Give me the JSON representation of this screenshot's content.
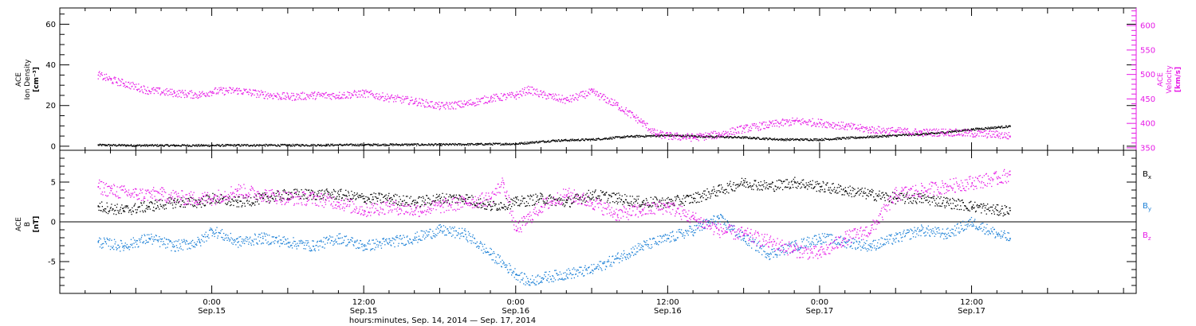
{
  "chart_data": [
    {
      "type": "scatter",
      "panel": "top",
      "left_axis": {
        "label_lines": [
          "ACE",
          "Ion Density",
          "[cm⁻³]"
        ],
        "ylim": [
          -2,
          68
        ],
        "ticks": [
          0,
          20,
          40,
          60
        ],
        "tick_labels": [
          "0",
          "20",
          "40",
          "60"
        ]
      },
      "right_axis": {
        "label_lines": [
          "ACE",
          "Velocity",
          "[km/s]"
        ],
        "ylim": [
          345,
          636
        ],
        "ticks": [
          350,
          400,
          450,
          500,
          550,
          600
        ],
        "tick_labels": [
          "350",
          "400",
          "450",
          "500",
          "550",
          "600"
        ],
        "color": "#e619e6"
      },
      "series": [
        {
          "color": "#000000",
          "axis": "left",
          "x": [
            -9,
            -6,
            -3,
            0,
            3,
            6,
            9,
            12,
            15,
            18,
            21,
            24,
            27,
            30,
            33,
            36,
            39,
            42,
            45,
            48,
            51,
            54,
            57,
            60,
            63
          ],
          "y": [
            0.8,
            0.6,
            0.6,
            0.6,
            0.7,
            0.7,
            0.8,
            0.9,
            1.0,
            1.0,
            1.2,
            1.4,
            3.0,
            3.5,
            5.0,
            5.5,
            5.0,
            4.5,
            3.5,
            3.5,
            4.5,
            5.5,
            6.5,
            8.5,
            10.0
          ]
        },
        {
          "color": "#e619e6",
          "axis": "right",
          "x": [
            -9,
            -8,
            -7,
            -5,
            -3,
            -1,
            0,
            2,
            4,
            6,
            8,
            10,
            12,
            14,
            16,
            18,
            20,
            22,
            24,
            25,
            26,
            28,
            30,
            32,
            34,
            35,
            36,
            38,
            40,
            42,
            44,
            46,
            48,
            50,
            52,
            54,
            56,
            58,
            60,
            62,
            63
          ],
          "y": [
            500,
            490,
            483,
            468,
            463,
            459,
            466,
            468,
            460,
            455,
            458,
            458,
            462,
            453,
            446,
            436,
            440,
            452,
            458,
            470,
            460,
            448,
            465,
            438,
            402,
            380,
            375,
            372,
            378,
            390,
            398,
            405,
            402,
            395,
            388,
            385,
            382,
            383,
            380,
            378,
            375
          ]
        }
      ]
    },
    {
      "type": "scatter",
      "panel": "bottom",
      "left_axis": {
        "label_lines": [
          "ACE",
          "B",
          "[nT]"
        ],
        "ylim": [
          -9,
          9
        ],
        "ticks": [
          -5,
          0,
          5
        ],
        "tick_labels": [
          "-5",
          "0",
          "5"
        ]
      },
      "legend": [
        {
          "label": "B",
          "sub": "x",
          "color": "#000000"
        },
        {
          "label": "B",
          "sub": "y",
          "color": "#1a7fd6"
        },
        {
          "label": "B",
          "sub": "z",
          "color": "#e619e6"
        }
      ],
      "series": [
        {
          "name": "Bx",
          "color": "#000000",
          "x": [
            -9,
            -7,
            -5,
            -3,
            -1,
            0,
            2,
            4,
            6,
            8,
            10,
            12,
            14,
            16,
            18,
            20,
            22,
            24,
            26,
            28,
            30,
            32,
            34,
            36,
            38,
            40,
            42,
            44,
            46,
            48,
            50,
            52,
            54,
            56,
            58,
            60,
            62,
            63
          ],
          "y": [
            2.0,
            1.5,
            2.0,
            2.5,
            2.5,
            3.0,
            2.5,
            3.0,
            3.5,
            3.5,
            3.5,
            3.0,
            3.0,
            2.5,
            3.0,
            3.0,
            2.0,
            2.5,
            3.0,
            2.5,
            3.5,
            3.0,
            2.5,
            2.5,
            3.0,
            4.0,
            5.0,
            4.5,
            5.0,
            4.5,
            4.0,
            3.5,
            3.0,
            3.0,
            2.5,
            2.0,
            1.5,
            1.5
          ]
        },
        {
          "name": "By",
          "color": "#1a7fd6",
          "x": [
            -9,
            -7,
            -5,
            -3,
            -1,
            0,
            2,
            4,
            6,
            8,
            10,
            12,
            14,
            16,
            18,
            20,
            22,
            24,
            25,
            26,
            28,
            30,
            32,
            34,
            36,
            38,
            40,
            42,
            44,
            46,
            48,
            50,
            52,
            54,
            56,
            58,
            60,
            62,
            63
          ],
          "y": [
            -2.5,
            -3.0,
            -2.0,
            -3.0,
            -2.5,
            -1.0,
            -2.5,
            -2.0,
            -2.5,
            -3.0,
            -2.0,
            -3.0,
            -2.5,
            -2.0,
            -1.0,
            -1.5,
            -4.0,
            -6.5,
            -7.5,
            -7.0,
            -6.5,
            -6.0,
            -4.5,
            -3.0,
            -2.0,
            -1.0,
            0.5,
            -2.0,
            -4.0,
            -3.0,
            -2.0,
            -2.5,
            -3.0,
            -2.0,
            -1.0,
            -1.5,
            0.0,
            -1.5,
            -2.0
          ]
        },
        {
          "name": "Bz",
          "color": "#e619e6",
          "x": [
            -9,
            -8,
            -6,
            -4,
            -2,
            0,
            2,
            4,
            6,
            8,
            10,
            12,
            14,
            16,
            18,
            20,
            22,
            23,
            24,
            26,
            28,
            30,
            32,
            34,
            36,
            38,
            40,
            42,
            44,
            46,
            48,
            50,
            52,
            54,
            56,
            58,
            60,
            62,
            63
          ],
          "y": [
            4.5,
            4.0,
            3.5,
            3.5,
            3.0,
            3.0,
            4.0,
            3.5,
            3.0,
            3.0,
            2.5,
            1.5,
            2.0,
            1.5,
            2.0,
            2.5,
            3.0,
            5.0,
            -1.0,
            2.0,
            3.5,
            2.5,
            1.0,
            1.5,
            2.0,
            0.5,
            -1.0,
            -1.5,
            -2.5,
            -3.5,
            -4.0,
            -2.0,
            -1.0,
            3.5,
            4.0,
            4.5,
            5.0,
            5.5,
            6.0
          ]
        }
      ]
    }
  ],
  "x_axis": {
    "xlim": [
      -12,
      73
    ],
    "tick_positions": [
      0,
      12,
      24,
      36,
      48,
      60
    ],
    "tick_labels_time": [
      "0:00",
      "12:00",
      "0:00",
      "12:00",
      "0:00",
      "12:00"
    ],
    "tick_labels_date": [
      "Sep.15",
      "Sep.15",
      "Sep.16",
      "Sep.16",
      "Sep.17",
      "Sep.17"
    ],
    "title": "hours:minutes, Sep. 14, 2014 — Sep. 17, 2014"
  }
}
